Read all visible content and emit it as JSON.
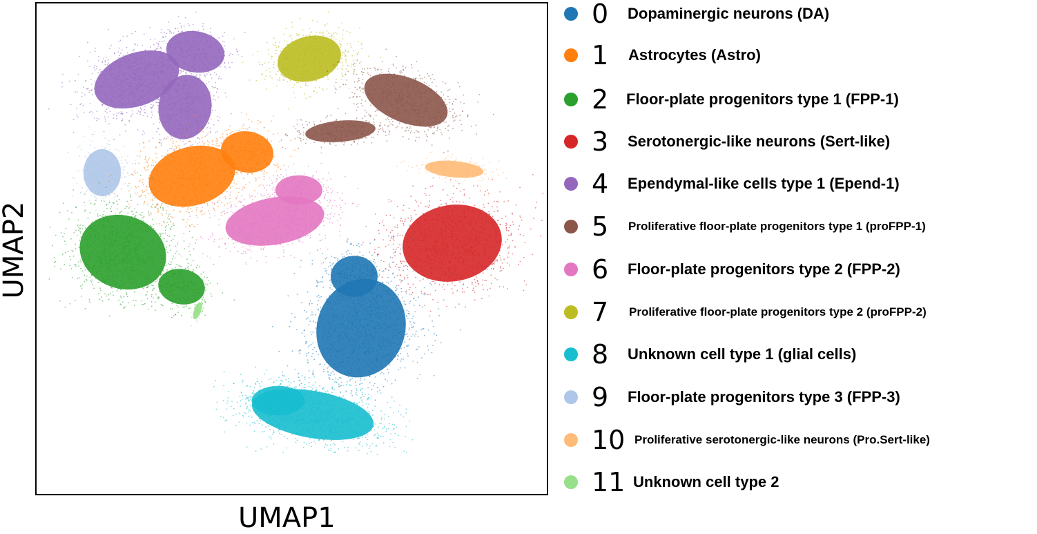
{
  "chart_data": {
    "type": "scatter",
    "xlabel": "UMAP1",
    "ylabel": "UMAP2",
    "grid": false,
    "ticks": false,
    "legend_position": "right outside",
    "series": [
      {
        "code": "0",
        "name": "Dopaminergic neurons (DA)",
        "color": "#1f77b4"
      },
      {
        "code": "1",
        "name": "Astrocytes (Astro)",
        "color": "#ff7f0e"
      },
      {
        "code": "2",
        "name": "Floor-plate progenitors type 1 (FPP-1)",
        "color": "#2ca02c"
      },
      {
        "code": "3",
        "name": "Serotonergic-like neurons (Sert-like)",
        "color": "#d62728"
      },
      {
        "code": "4",
        "name": "Ependymal-like cells type 1 (Epend-1)",
        "color": "#9467bd"
      },
      {
        "code": "5",
        "name": "Proliferative floor-plate progenitors type 1 (proFPP-1)",
        "color": "#8c564b"
      },
      {
        "code": "6",
        "name": "Floor-plate progenitors type 2 (FPP-2)",
        "color": "#e377c2"
      },
      {
        "code": "7",
        "name": "Proliferative floor-plate progenitors type 2 (proFPP-2)",
        "color": "#bcbd22"
      },
      {
        "code": "8",
        "name": "Unknown cell type 1 (glial cells)",
        "color": "#17becf"
      },
      {
        "code": "9",
        "name": "Floor-plate progenitors type 3 (FPP-3)",
        "color": "#aec7e8"
      },
      {
        "code": "10",
        "name": "Proliferative serotonergic-like neurons (Pro.Sert-like)",
        "color": "#ffbb78"
      },
      {
        "code": "11",
        "name": "Unknown cell type 2",
        "color": "#98df8a"
      }
    ]
  }
}
